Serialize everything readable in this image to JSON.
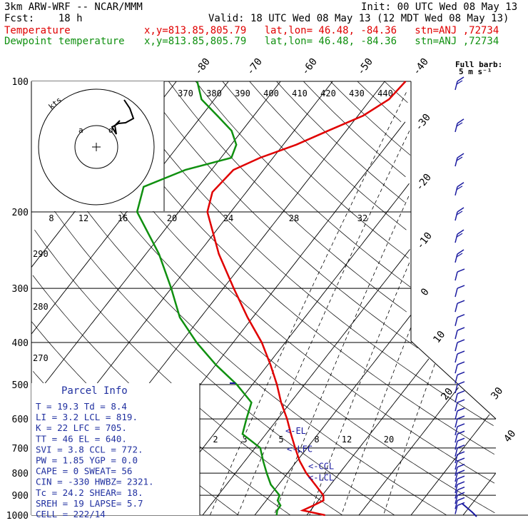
{
  "header": {
    "model": "3km ARW-WRF -- NCAR/MMM",
    "init": "Init: 00 UTC Wed 08 May 13",
    "fcst": "Fcst:    18 h",
    "valid": "Valid: 18 UTC Wed 08 May 13 (12 MDT Wed 08 May 13)",
    "temp_legend": "Temperature",
    "dew_legend": "Dewpoint temperature",
    "location": "x,y=813.85,805.79   lat,lon= 46.48, -84.36   stn=ANJ ,72734",
    "barb_title": "Full barb:",
    "barb_unit": "5 m s⁻¹"
  },
  "colors": {
    "temperature": "#e00000",
    "dewpoint": "#109010",
    "wind": "#1a1aa0",
    "parcel_text": "#2030a0"
  },
  "chart_data": {
    "type": "line",
    "title": "",
    "xlabel": "",
    "ylabel": "",
    "pressure_ticks": [
      100,
      200,
      300,
      400,
      500,
      600,
      700,
      800,
      900,
      1000
    ],
    "isotherm_labels": [
      "-80",
      "-70",
      "-60",
      "-50",
      "-40",
      "-30",
      "-20",
      "-10",
      "0",
      "10",
      "20",
      "30",
      "40"
    ],
    "mixing_ratio_labels_upper": [
      "8",
      "12",
      "16",
      "20",
      "24",
      "28",
      "32"
    ],
    "mixing_ratio_labels_lower": [
      "2",
      "3",
      "5",
      "8",
      "12",
      "20"
    ],
    "theta_labels_upper": [
      "370",
      "380",
      "390",
      "400",
      "410",
      "420",
      "430",
      "440"
    ],
    "theta_labels_left": [
      "290",
      "280",
      "270"
    ],
    "series": [
      {
        "name": "Temperature",
        "points": [
          [
            1000,
            13.5
          ],
          [
            975,
            8.5
          ],
          [
            950,
            9.8
          ],
          [
            925,
            11.0
          ],
          [
            900,
            10.2
          ],
          [
            850,
            7.0
          ],
          [
            800,
            3.6
          ],
          [
            750,
            0.5
          ],
          [
            700,
            -2.3
          ],
          [
            650,
            -5.2
          ],
          [
            600,
            -8.2
          ],
          [
            550,
            -11.8
          ],
          [
            500,
            -15.3
          ],
          [
            450,
            -19.5
          ],
          [
            400,
            -24.5
          ],
          [
            350,
            -31.0
          ],
          [
            300,
            -38.0
          ],
          [
            250,
            -46.0
          ],
          [
            200,
            -54.5
          ],
          [
            180,
            -56.5
          ],
          [
            160,
            -55.8
          ],
          [
            150,
            -52.5
          ],
          [
            140,
            -47.5
          ],
          [
            130,
            -43.5
          ],
          [
            120,
            -39.0
          ],
          [
            110,
            -36.5
          ],
          [
            100,
            -36.0
          ]
        ]
      },
      {
        "name": "Dewpoint temperature",
        "points": [
          [
            1000,
            4.2
          ],
          [
            975,
            3.6
          ],
          [
            950,
            3.5
          ],
          [
            925,
            2.2
          ],
          [
            900,
            1.8
          ],
          [
            850,
            -1.5
          ],
          [
            800,
            -4.0
          ],
          [
            750,
            -6.5
          ],
          [
            700,
            -9.0
          ],
          [
            650,
            -14.5
          ],
          [
            600,
            -16.0
          ],
          [
            550,
            -17.5
          ],
          [
            500,
            -23.0
          ],
          [
            450,
            -30.0
          ],
          [
            400,
            -37.0
          ],
          [
            350,
            -44.0
          ],
          [
            300,
            -50.0
          ],
          [
            250,
            -57.5
          ],
          [
            200,
            -68.0
          ],
          [
            175,
            -70.5
          ],
          [
            160,
            -65.0
          ],
          [
            150,
            -58.0
          ],
          [
            140,
            -59.0
          ],
          [
            130,
            -62.0
          ],
          [
            120,
            -67.0
          ],
          [
            110,
            -72.5
          ],
          [
            100,
            -76.0
          ]
        ]
      }
    ],
    "parcel_markers": [
      {
        "label": "<-EL",
        "p": 640
      },
      {
        "label": "<-LFC",
        "p": 705
      },
      {
        "label": "<-CCL",
        "p": 772
      },
      {
        "label": "<-LCL",
        "p": 819
      }
    ],
    "hodograph": {
      "ring_label": "kts",
      "ring_values": [
        "8",
        "12",
        "16",
        "20"
      ],
      "marker_labels": [
        "a",
        "d"
      ]
    }
  },
  "parcel_info": {
    "title": "Parcel Info",
    "rows": [
      "T  =   19.3  Td =   8.4",
      "LI =    3.2  LCL =  819.",
      "K  =     22  LFC =  705.",
      "TT =     46  EL  =  640.",
      "SVI =   3.8  CCL =  772.",
      "PW =   1.85  YGP =   0.0",
      "CAPE =    0  SWEAT=   56",
      "CIN =  -330  HWBZ= 2321.",
      "Tc =   24.2  SHEAR=  18.",
      "SREH =   19  LAPSE=  5.7",
      "CELL = 222/14"
    ]
  }
}
